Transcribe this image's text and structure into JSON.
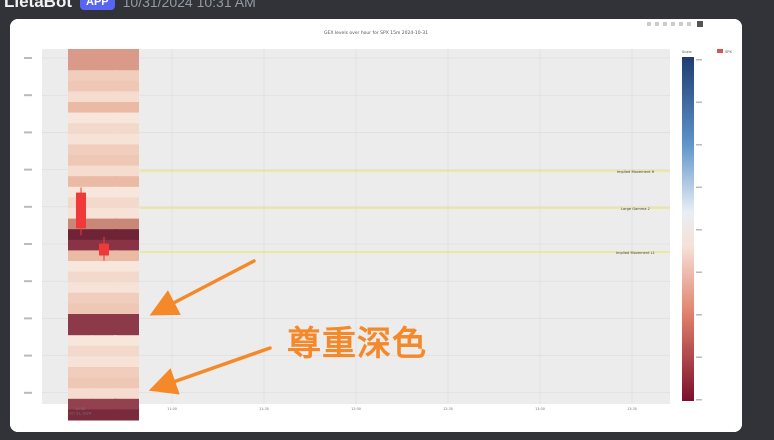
{
  "message": {
    "username": "LietaBot",
    "app_tag": "APP",
    "timestamp": "10/31/2024 10:31 AM"
  },
  "toolbar": {
    "icons": [
      "camera-icon",
      "zoom-icon",
      "pan-icon",
      "zoom-in-icon",
      "zoom-out-icon",
      "autoscale-icon",
      "reset-icon"
    ]
  },
  "chart_data": {
    "type": "heatmap",
    "title": "GEX levels over hour for SPX 15m 2024-10-31",
    "legend": {
      "entries": [
        "SPX"
      ],
      "placement": "top-right"
    },
    "colorbar": {
      "title": "Scale",
      "colorscale": "RdBu"
    },
    "annotations": [
      "Implied Movement H",
      "Large Gamma 2",
      "Implied Movement L1"
    ],
    "x_tick_labels": [
      "10:30\nOct 31, 2024",
      "11:00",
      "11:30",
      "12:00",
      "12:30",
      "13:00",
      "13:30"
    ],
    "candlesticks": [
      {
        "x": "10:30",
        "open": 5732,
        "close": 5711,
        "high": 5735,
        "low": 5707
      },
      {
        "x": "10:45",
        "open": 5702,
        "close": 5695,
        "high": 5706,
        "low": 5692
      }
    ]
  },
  "callout": {
    "text": "尊重深色",
    "color": "#f5892a"
  },
  "colors": {
    "background": "#313338",
    "chart_bg": "#ececec",
    "level_line": "#e8e35a",
    "dark_band": "#6e2336",
    "candle": "#f03a3a",
    "arrow": "#f5892a"
  }
}
